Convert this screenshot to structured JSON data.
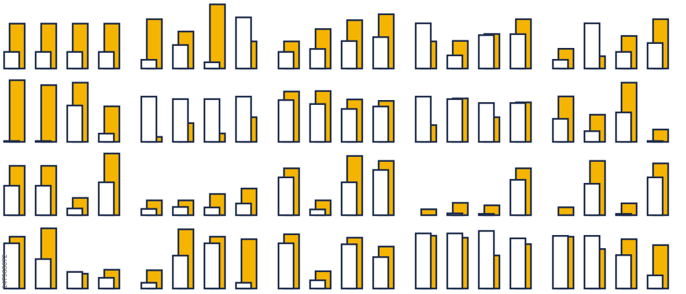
{
  "colors": {
    "outline": "#1b2a4a",
    "accent": "#f5b400",
    "background": "#ffffff"
  },
  "icon_name": "bar-chart-icon",
  "stock_id": "147968672",
  "icons": [
    [
      [
        0.42,
        0.91
      ],
      [
        0.42,
        0.91
      ],
      [
        0.42,
        0.91
      ],
      [
        0.42,
        0.91
      ]
    ],
    [
      [
        0.26,
        1.0
      ],
      [
        0.56,
        0.75
      ],
      [
        0.21,
        1.3
      ],
      [
        1.12,
        0.55
      ]
    ],
    [
      [
        0.42,
        0.55
      ],
      [
        0.48,
        0.8
      ],
      [
        0.64,
        0.98
      ],
      [
        0.72,
        1.1
      ]
    ],
    [
      [
        1.0,
        0.55
      ],
      [
        0.35,
        0.56
      ],
      [
        0.76,
        0.7
      ],
      [
        0.78,
        1.0
      ]
    ],
    [
      [
        0.26,
        0.4
      ],
      [
        1.0,
        0.25
      ],
      [
        0.42,
        0.66
      ],
      [
        0.6,
        1.0
      ]
    ],
    [
      [
        0.1,
        1.25
      ],
      [
        0.1,
        1.15
      ],
      [
        0.82,
        1.2
      ],
      [
        0.25,
        0.72
      ]
    ],
    [
      [
        1.0,
        0.1
      ],
      [
        0.95,
        0.38
      ],
      [
        0.95,
        0.17
      ],
      [
        1.0,
        0.5
      ]
    ],
    [
      [
        0.93,
        1.02
      ],
      [
        0.85,
        1.03
      ],
      [
        0.75,
        0.86
      ],
      [
        0.8,
        0.83
      ]
    ],
    [
      [
        1.0,
        0.34
      ],
      [
        0.95,
        0.88
      ],
      [
        0.87,
        0.5
      ],
      [
        0.87,
        0.8
      ]
    ],
    [
      [
        0.55,
        0.92
      ],
      [
        0.3,
        0.55
      ],
      [
        0.68,
        1.2
      ],
      [
        0.1,
        0.25
      ]
    ],
    [
      [
        0.68,
        1.0
      ],
      [
        0.68,
        1.0
      ],
      [
        0.22,
        0.35
      ],
      [
        0.75,
        1.25
      ]
    ],
    [
      [
        0.21,
        0.3
      ],
      [
        0.25,
        0.3
      ],
      [
        0.24,
        0.43
      ],
      [
        0.32,
        0.54
      ]
    ],
    [
      [
        0.85,
        0.95
      ],
      [
        0.2,
        0.3
      ],
      [
        0.75,
        1.2
      ],
      [
        1.0,
        1.1
      ]
    ],
    [
      [
        0.06,
        0.12
      ],
      [
        0.12,
        0.25
      ],
      [
        0.11,
        0.2
      ],
      [
        0.8,
        0.95
      ]
    ],
    [
      [
        0.08,
        0.16
      ],
      [
        0.72,
        1.1
      ],
      [
        0.11,
        0.24
      ],
      [
        0.85,
        1.05
      ]
    ],
    [
      [
        1.0,
        1.05
      ],
      [
        0.68,
        1.22
      ],
      [
        0.42,
        0.3
      ],
      [
        0.3,
        0.38
      ]
    ],
    [
      [
        0.2,
        0.37
      ],
      [
        0.75,
        1.2
      ],
      [
        1.0,
        1.05
      ],
      [
        0.2,
        1.0
      ]
    ],
    [
      [
        1.0,
        1.1
      ],
      [
        0.25,
        0.35
      ],
      [
        0.98,
        1.03
      ],
      [
        0.72,
        0.85
      ]
    ],
    [
      [
        1.2,
        1.07
      ],
      [
        1.2,
        1.03
      ],
      [
        1.25,
        0.67
      ],
      [
        1.1,
        0.9
      ]
    ],
    [
      [
        1.15,
        1.05
      ],
      [
        1.15,
        0.8
      ],
      [
        0.76,
        1.0
      ],
      [
        0.35,
        0.88
      ]
    ]
  ]
}
